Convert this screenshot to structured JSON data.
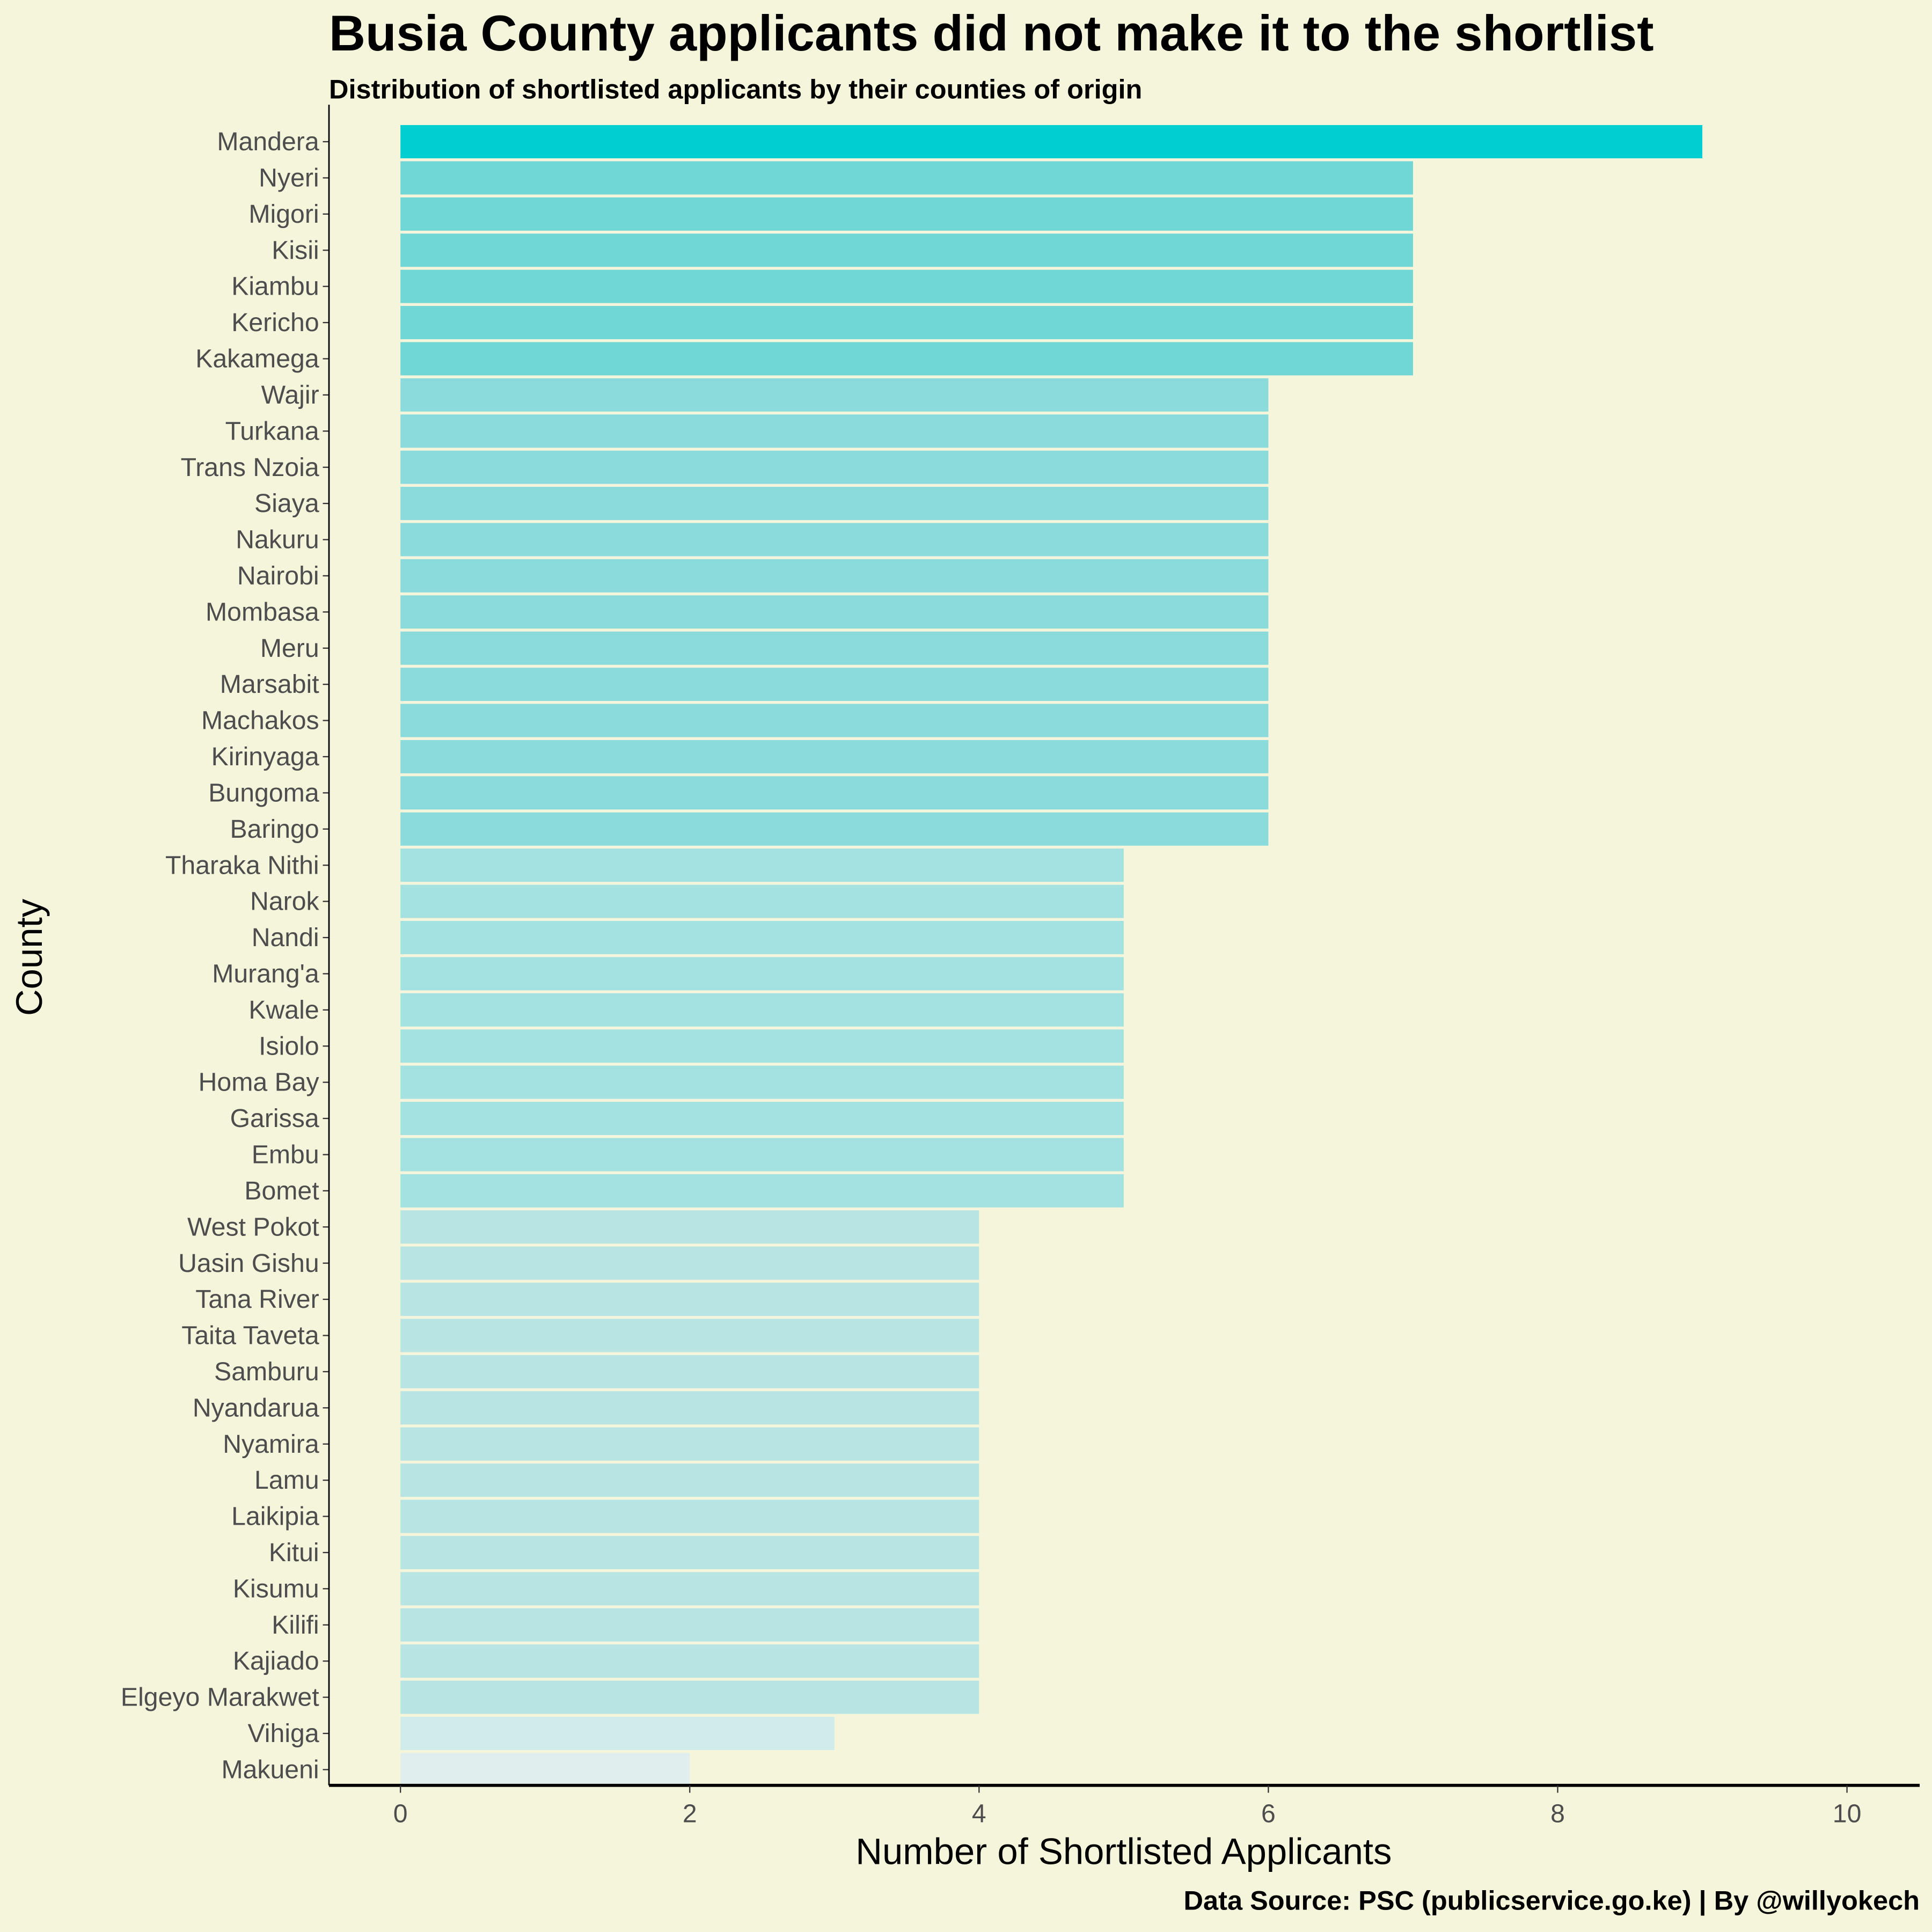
{
  "chart_data": {
    "type": "bar",
    "orientation": "horizontal",
    "title": "Busia County applicants did not make it to the shortlist",
    "subtitle": "Distribution of shortlisted applicants by their counties of origin",
    "xlabel": "Number of Shortlisted Applicants",
    "ylabel": "County",
    "caption": "Data Source: PSC (publicservice.go.ke) | By @willyokech",
    "xlim": [
      0,
      10
    ],
    "xticks": [
      "0",
      "2",
      "4",
      "6",
      "8",
      "10"
    ],
    "grid": false,
    "categories": [
      "Mandera",
      "Nyeri",
      "Migori",
      "Kisii",
      "Kiambu",
      "Kericho",
      "Kakamega",
      "Wajir",
      "Turkana",
      "Trans Nzoia",
      "Siaya",
      "Nakuru",
      "Nairobi",
      "Mombasa",
      "Meru",
      "Marsabit",
      "Machakos",
      "Kirinyaga",
      "Bungoma",
      "Baringo",
      "Tharaka Nithi",
      "Narok",
      "Nandi",
      "Murang'a",
      "Kwale",
      "Isiolo",
      "Homa Bay",
      "Garissa",
      "Embu",
      "Bomet",
      "West Pokot",
      "Uasin Gishu",
      "Tana River",
      "Taita Taveta",
      "Samburu",
      "Nyandarua",
      "Nyamira",
      "Lamu",
      "Laikipia",
      "Kitui",
      "Kisumu",
      "Kilifi",
      "Kajiado",
      "Elgeyo Marakwet",
      "Vihiga",
      "Makueni"
    ],
    "values": [
      9,
      7,
      7,
      7,
      7,
      7,
      7,
      6,
      6,
      6,
      6,
      6,
      6,
      6,
      6,
      6,
      6,
      6,
      6,
      6,
      5,
      5,
      5,
      5,
      5,
      5,
      5,
      5,
      5,
      5,
      4,
      4,
      4,
      4,
      4,
      4,
      4,
      4,
      4,
      4,
      4,
      4,
      4,
      4,
      3,
      2
    ],
    "color_scale": {
      "9": "#00CED1",
      "7": "#71D6D6",
      "6": "#8BDBDD",
      "5": "#A4E1E1",
      "4": "#B8E4E4",
      "3": "#CFEBEA",
      "2": "#E0EEEE"
    },
    "background": "#F5F5DC"
  }
}
